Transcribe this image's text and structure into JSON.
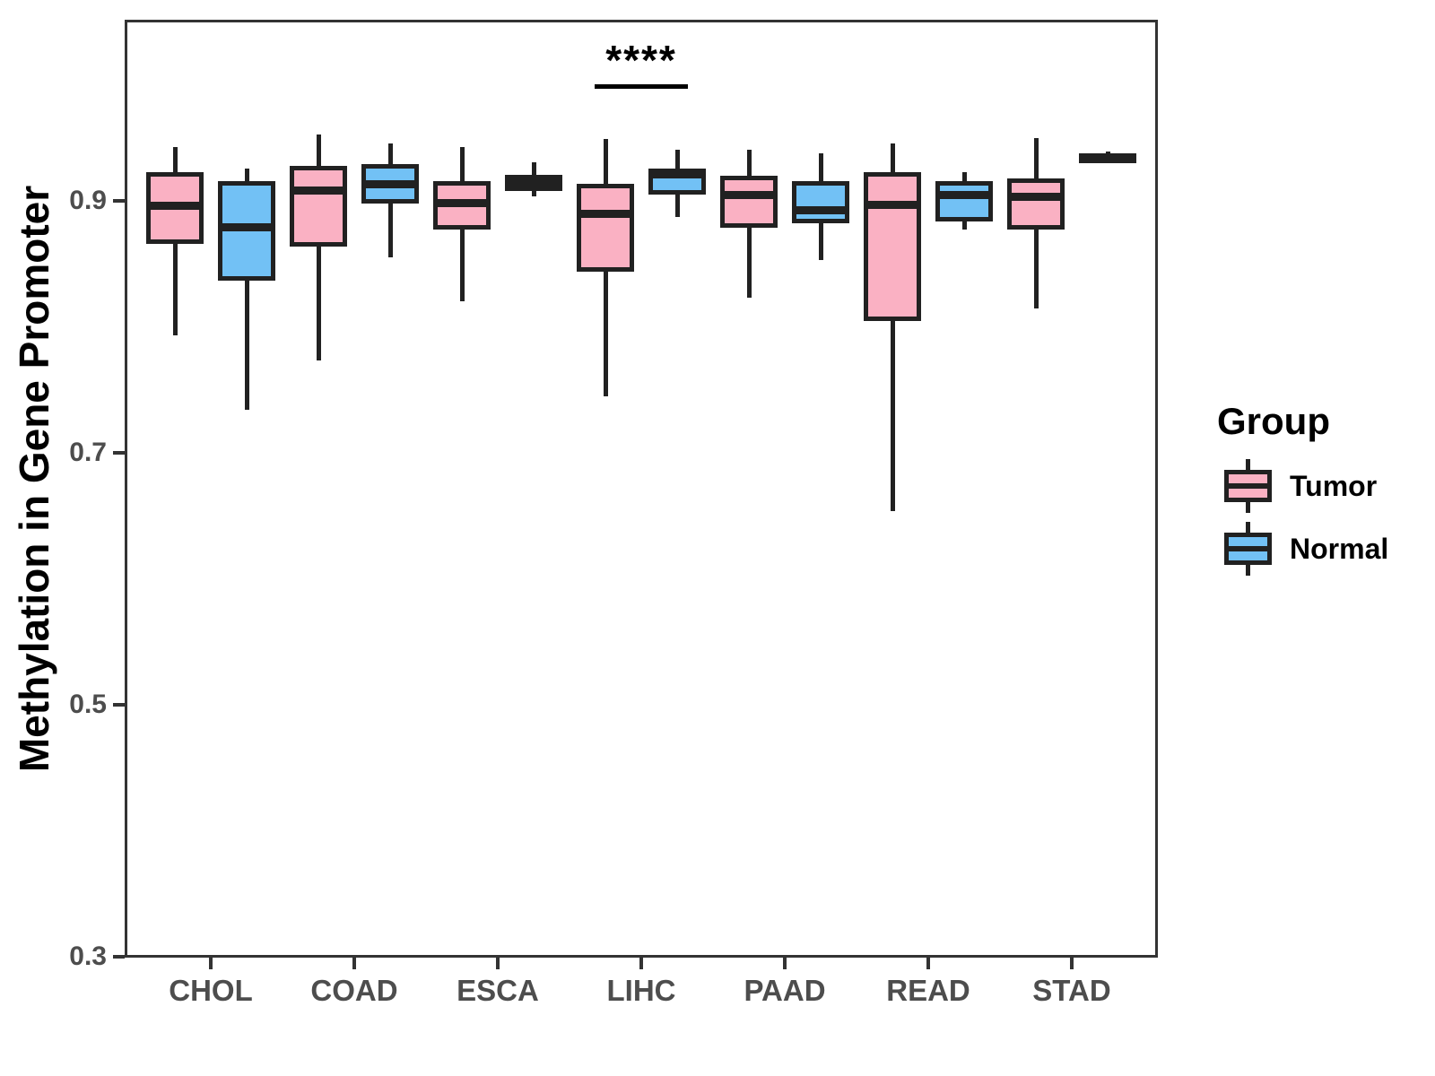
{
  "chart_data": {
    "type": "boxplot",
    "title": "",
    "xlabel": "",
    "ylabel": "Methylation in Gene Promoter",
    "categories": [
      "CHOL",
      "COAD",
      "ESCA",
      "LIHC",
      "PAAD",
      "READ",
      "STAD"
    ],
    "y_ticks": [
      {
        "label": "0.9",
        "value": 0.9
      },
      {
        "label": "0.7",
        "value": 0.7
      },
      {
        "label": "0.5",
        "value": 0.5
      },
      {
        "label": "0.3",
        "value": 0.3
      }
    ],
    "y_axis_panel_range": [
      0.299,
      1.044
    ],
    "grid": false,
    "legend_position": "right",
    "series": [
      {
        "name": "Tumor",
        "fill_color": "#FAB1C3",
        "stats": [
          {
            "category": "CHOL",
            "whisker_low": 0.793,
            "q1": 0.866,
            "median": 0.896,
            "q3": 0.923,
            "whisker_high": 0.943
          },
          {
            "category": "COAD",
            "whisker_low": 0.773,
            "q1": 0.864,
            "median": 0.908,
            "q3": 0.928,
            "whisker_high": 0.953
          },
          {
            "category": "ESCA",
            "whisker_low": 0.82,
            "q1": 0.877,
            "median": 0.898,
            "q3": 0.916,
            "whisker_high": 0.943
          },
          {
            "category": "LIHC",
            "whisker_low": 0.745,
            "q1": 0.844,
            "median": 0.89,
            "q3": 0.914,
            "whisker_high": 0.949
          },
          {
            "category": "PAAD",
            "whisker_low": 0.823,
            "q1": 0.879,
            "median": 0.905,
            "q3": 0.92,
            "whisker_high": 0.941
          },
          {
            "category": "READ",
            "whisker_low": 0.654,
            "q1": 0.805,
            "median": 0.897,
            "q3": 0.923,
            "whisker_high": 0.946
          },
          {
            "category": "STAD",
            "whisker_low": 0.815,
            "q1": 0.877,
            "median": 0.903,
            "q3": 0.918,
            "whisker_high": 0.95
          }
        ]
      },
      {
        "name": "Normal",
        "fill_color": "#72C1F5",
        "stats": [
          {
            "category": "CHOL",
            "whisker_low": 0.734,
            "q1": 0.837,
            "median": 0.879,
            "q3": 0.916,
            "whisker_high": 0.926
          },
          {
            "category": "COAD",
            "whisker_low": 0.855,
            "q1": 0.898,
            "median": 0.913,
            "q3": 0.929,
            "whisker_high": 0.946
          },
          {
            "category": "ESCA",
            "whisker_low": 0.904,
            "q1": 0.908,
            "median": 0.915,
            "q3": 0.921,
            "whisker_high": 0.931
          },
          {
            "category": "LIHC",
            "whisker_low": 0.887,
            "q1": 0.905,
            "median": 0.921,
            "q3": 0.926,
            "whisker_high": 0.941
          },
          {
            "category": "PAAD",
            "whisker_low": 0.853,
            "q1": 0.882,
            "median": 0.893,
            "q3": 0.916,
            "whisker_high": 0.938
          },
          {
            "category": "READ",
            "whisker_low": 0.877,
            "q1": 0.884,
            "median": 0.905,
            "q3": 0.916,
            "whisker_high": 0.923
          },
          {
            "category": "STAD",
            "whisker_low": 0.931,
            "q1": 0.933,
            "median": 0.935,
            "q3": 0.937,
            "whisker_high": 0.939
          }
        ]
      }
    ],
    "annotation": {
      "text": "****",
      "category": "LIHC",
      "line_y_value": 0.993
    },
    "colors": {
      "box_border": "#212121",
      "axis": "#333333",
      "tick_label": "#4D4D4D",
      "annotation": "#000000"
    }
  },
  "legend": {
    "title": "Group"
  }
}
